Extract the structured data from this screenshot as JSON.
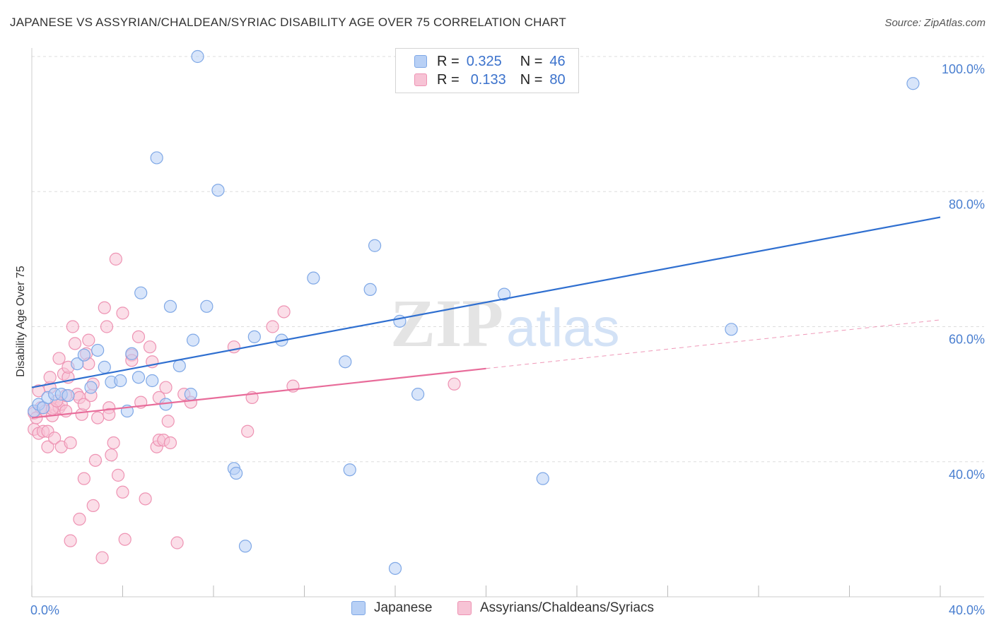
{
  "title": "JAPANESE VS ASSYRIAN/CHALDEAN/SYRIAC DISABILITY AGE OVER 75 CORRELATION CHART",
  "source": "Source: ZipAtlas.com",
  "watermark": {
    "zip": "ZIP",
    "atlas": "atlas"
  },
  "colors": {
    "japanese_fill": "#b8d0f5",
    "japanese_stroke": "#7fa8e6",
    "japanese_line": "#2f6fd0",
    "assyrian_fill": "#f7c3d5",
    "assyrian_stroke": "#ee93b3",
    "assyrian_line": "#e86c9a",
    "tick_text": "#4a7fd0",
    "grid": "#dddddd"
  },
  "legend": {
    "rows": [
      {
        "r_label": "R =",
        "r_value": "0.325",
        "n_label": "N =",
        "n_value": "46"
      },
      {
        "r_label": "R =",
        "r_value": "0.133",
        "n_label": "N =",
        "n_value": "80"
      }
    ],
    "bottom": [
      "Japanese",
      "Assyrians/Chaldeans/Syriacs"
    ]
  },
  "chart_data": {
    "type": "scatter",
    "title": "JAPANESE VS ASSYRIAN/CHALDEAN/SYRIAC DISABILITY AGE OVER 75 CORRELATION CHART",
    "xlabel": "",
    "ylabel": "Disability Age Over 75",
    "xlim": [
      0,
      40
    ],
    "ylim": [
      20,
      100
    ],
    "x_tick_labels": [
      {
        "value": 0,
        "label": "0.0%"
      },
      {
        "value": 40,
        "label": "40.0%"
      }
    ],
    "y_ticks": [
      {
        "value": 40,
        "label": "40.0%"
      },
      {
        "value": 60,
        "label": "60.0%"
      },
      {
        "value": 80,
        "label": "80.0%"
      },
      {
        "value": 100,
        "label": "100.0%"
      }
    ],
    "grid": true,
    "legend_position": "top-center",
    "series": [
      {
        "name": "Japanese",
        "R": 0.325,
        "N": 46,
        "trend": {
          "x": [
            0,
            40
          ],
          "y": [
            51.0,
            76.2
          ]
        },
        "points": [
          [
            0.1,
            47.5
          ],
          [
            0.3,
            48.5
          ],
          [
            0.5,
            48.0
          ],
          [
            0.7,
            49.5
          ],
          [
            1.0,
            50.0
          ],
          [
            1.3,
            50.0
          ],
          [
            1.6,
            49.8
          ],
          [
            2.0,
            54.5
          ],
          [
            2.3,
            55.8
          ],
          [
            2.6,
            51.0
          ],
          [
            2.9,
            56.5
          ],
          [
            3.2,
            54.0
          ],
          [
            3.5,
            51.8
          ],
          [
            3.9,
            52.0
          ],
          [
            4.2,
            47.5
          ],
          [
            4.4,
            56.0
          ],
          [
            4.7,
            52.5
          ],
          [
            4.8,
            65.0
          ],
          [
            5.3,
            52.0
          ],
          [
            5.5,
            85.0
          ],
          [
            5.9,
            48.5
          ],
          [
            6.1,
            63.0
          ],
          [
            6.5,
            54.2
          ],
          [
            7.0,
            50.0
          ],
          [
            7.1,
            58.0
          ],
          [
            7.3,
            100.0
          ],
          [
            7.7,
            63.0
          ],
          [
            8.2,
            80.2
          ],
          [
            8.9,
            39.0
          ],
          [
            9.0,
            38.3
          ],
          [
            9.4,
            27.5
          ],
          [
            9.8,
            58.5
          ],
          [
            11.0,
            58.0
          ],
          [
            12.4,
            67.2
          ],
          [
            13.8,
            54.8
          ],
          [
            14.0,
            38.8
          ],
          [
            14.9,
            65.5
          ],
          [
            15.1,
            72.0
          ],
          [
            16.0,
            24.2
          ],
          [
            16.2,
            60.8
          ],
          [
            17.0,
            50.0
          ],
          [
            20.8,
            64.8
          ],
          [
            22.5,
            37.5
          ],
          [
            23.2,
            100.0
          ],
          [
            30.8,
            59.6
          ],
          [
            38.8,
            96.0
          ]
        ]
      },
      {
        "name": "Assyrians/Chaldeans/Syriacs",
        "R": 0.133,
        "N": 80,
        "trend": {
          "x": [
            0,
            20
          ],
          "y": [
            46.5,
            53.8
          ]
        },
        "trend_extension": {
          "x": [
            20,
            40
          ],
          "y": [
            53.8,
            61.0
          ]
        },
        "points": [
          [
            0.1,
            47.2
          ],
          [
            0.1,
            44.8
          ],
          [
            0.2,
            46.5
          ],
          [
            0.3,
            44.2
          ],
          [
            0.3,
            50.5
          ],
          [
            0.4,
            48.0
          ],
          [
            0.5,
            44.5
          ],
          [
            0.6,
            47.5
          ],
          [
            0.7,
            44.5
          ],
          [
            0.7,
            42.2
          ],
          [
            0.8,
            51.0
          ],
          [
            0.8,
            52.5
          ],
          [
            0.9,
            46.8
          ],
          [
            1.0,
            43.5
          ],
          [
            1.0,
            48.0
          ],
          [
            1.2,
            48.0
          ],
          [
            1.2,
            55.3
          ],
          [
            1.3,
            42.2
          ],
          [
            1.3,
            48.5
          ],
          [
            1.4,
            53.0
          ],
          [
            1.5,
            47.5
          ],
          [
            1.5,
            49.8
          ],
          [
            1.6,
            52.5
          ],
          [
            1.6,
            54.0
          ],
          [
            1.7,
            42.8
          ],
          [
            1.7,
            28.3
          ],
          [
            1.8,
            60.0
          ],
          [
            1.9,
            57.5
          ],
          [
            2.0,
            50.0
          ],
          [
            2.1,
            49.5
          ],
          [
            2.1,
            31.5
          ],
          [
            2.2,
            47.0
          ],
          [
            2.3,
            37.5
          ],
          [
            2.3,
            48.5
          ],
          [
            2.4,
            56.0
          ],
          [
            2.5,
            54.5
          ],
          [
            2.5,
            58.0
          ],
          [
            2.7,
            51.5
          ],
          [
            2.7,
            33.5
          ],
          [
            2.8,
            40.2
          ],
          [
            2.9,
            46.5
          ],
          [
            3.1,
            25.8
          ],
          [
            3.2,
            62.8
          ],
          [
            3.3,
            60.0
          ],
          [
            3.4,
            48.0
          ],
          [
            3.5,
            41.0
          ],
          [
            3.6,
            42.8
          ],
          [
            3.7,
            70.0
          ],
          [
            3.8,
            38.0
          ],
          [
            4.0,
            62.0
          ],
          [
            4.0,
            35.5
          ],
          [
            4.1,
            28.5
          ],
          [
            4.4,
            55.8
          ],
          [
            4.4,
            55.0
          ],
          [
            4.7,
            58.5
          ],
          [
            4.8,
            48.8
          ],
          [
            5.0,
            34.5
          ],
          [
            5.2,
            57.0
          ],
          [
            5.3,
            54.8
          ],
          [
            5.5,
            42.2
          ],
          [
            5.6,
            43.2
          ],
          [
            5.6,
            49.5
          ],
          [
            5.8,
            43.2
          ],
          [
            6.0,
            46.0
          ],
          [
            6.1,
            42.8
          ],
          [
            6.4,
            28.0
          ],
          [
            6.7,
            50.0
          ],
          [
            7.0,
            48.8
          ],
          [
            8.9,
            57.0
          ],
          [
            9.5,
            44.5
          ],
          [
            9.7,
            49.5
          ],
          [
            10.6,
            60.0
          ],
          [
            11.1,
            62.2
          ],
          [
            11.5,
            51.2
          ],
          [
            18.6,
            51.5
          ],
          [
            0.9,
            47.8
          ],
          [
            2.6,
            49.8
          ],
          [
            1.1,
            49.0
          ],
          [
            5.9,
            51.0
          ],
          [
            3.4,
            47.0
          ]
        ]
      }
    ]
  }
}
